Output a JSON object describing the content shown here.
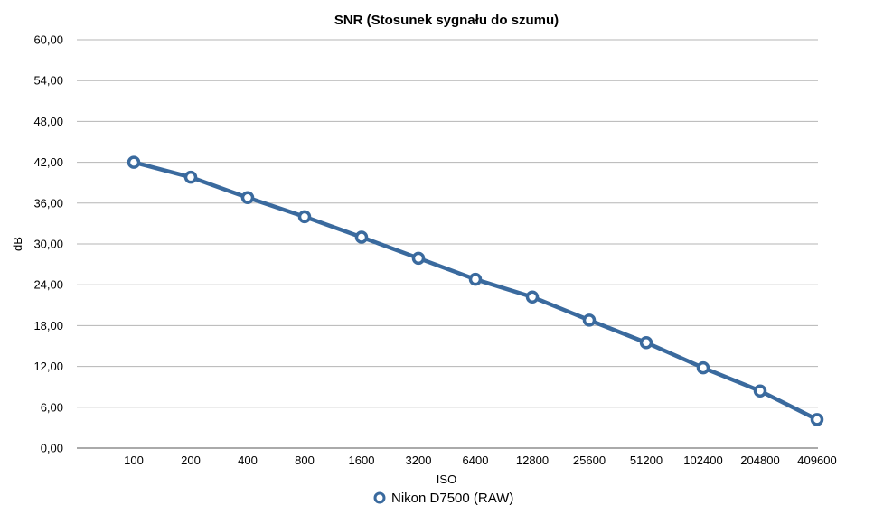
{
  "chart_data": {
    "type": "line",
    "title": "SNR (Stosunek sygnału do szumu)",
    "xlabel": "ISO",
    "ylabel": "dB",
    "categories": [
      "100",
      "200",
      "400",
      "800",
      "1600",
      "3200",
      "6400",
      "12800",
      "25600",
      "51200",
      "102400",
      "204800",
      "409600"
    ],
    "yticks": [
      "0,00",
      "6,00",
      "12,00",
      "18,00",
      "24,00",
      "30,00",
      "36,00",
      "42,00",
      "48,00",
      "54,00",
      "60,00"
    ],
    "ylim": [
      0,
      60
    ],
    "grid": true,
    "legend_position": "bottom",
    "series": [
      {
        "name": "Nikon D7500 (RAW)",
        "color": "#3a6a9e",
        "values": [
          42.0,
          39.8,
          36.8,
          34.0,
          31.0,
          27.9,
          24.8,
          22.2,
          18.8,
          15.5,
          11.8,
          8.4,
          4.2
        ]
      }
    ]
  }
}
